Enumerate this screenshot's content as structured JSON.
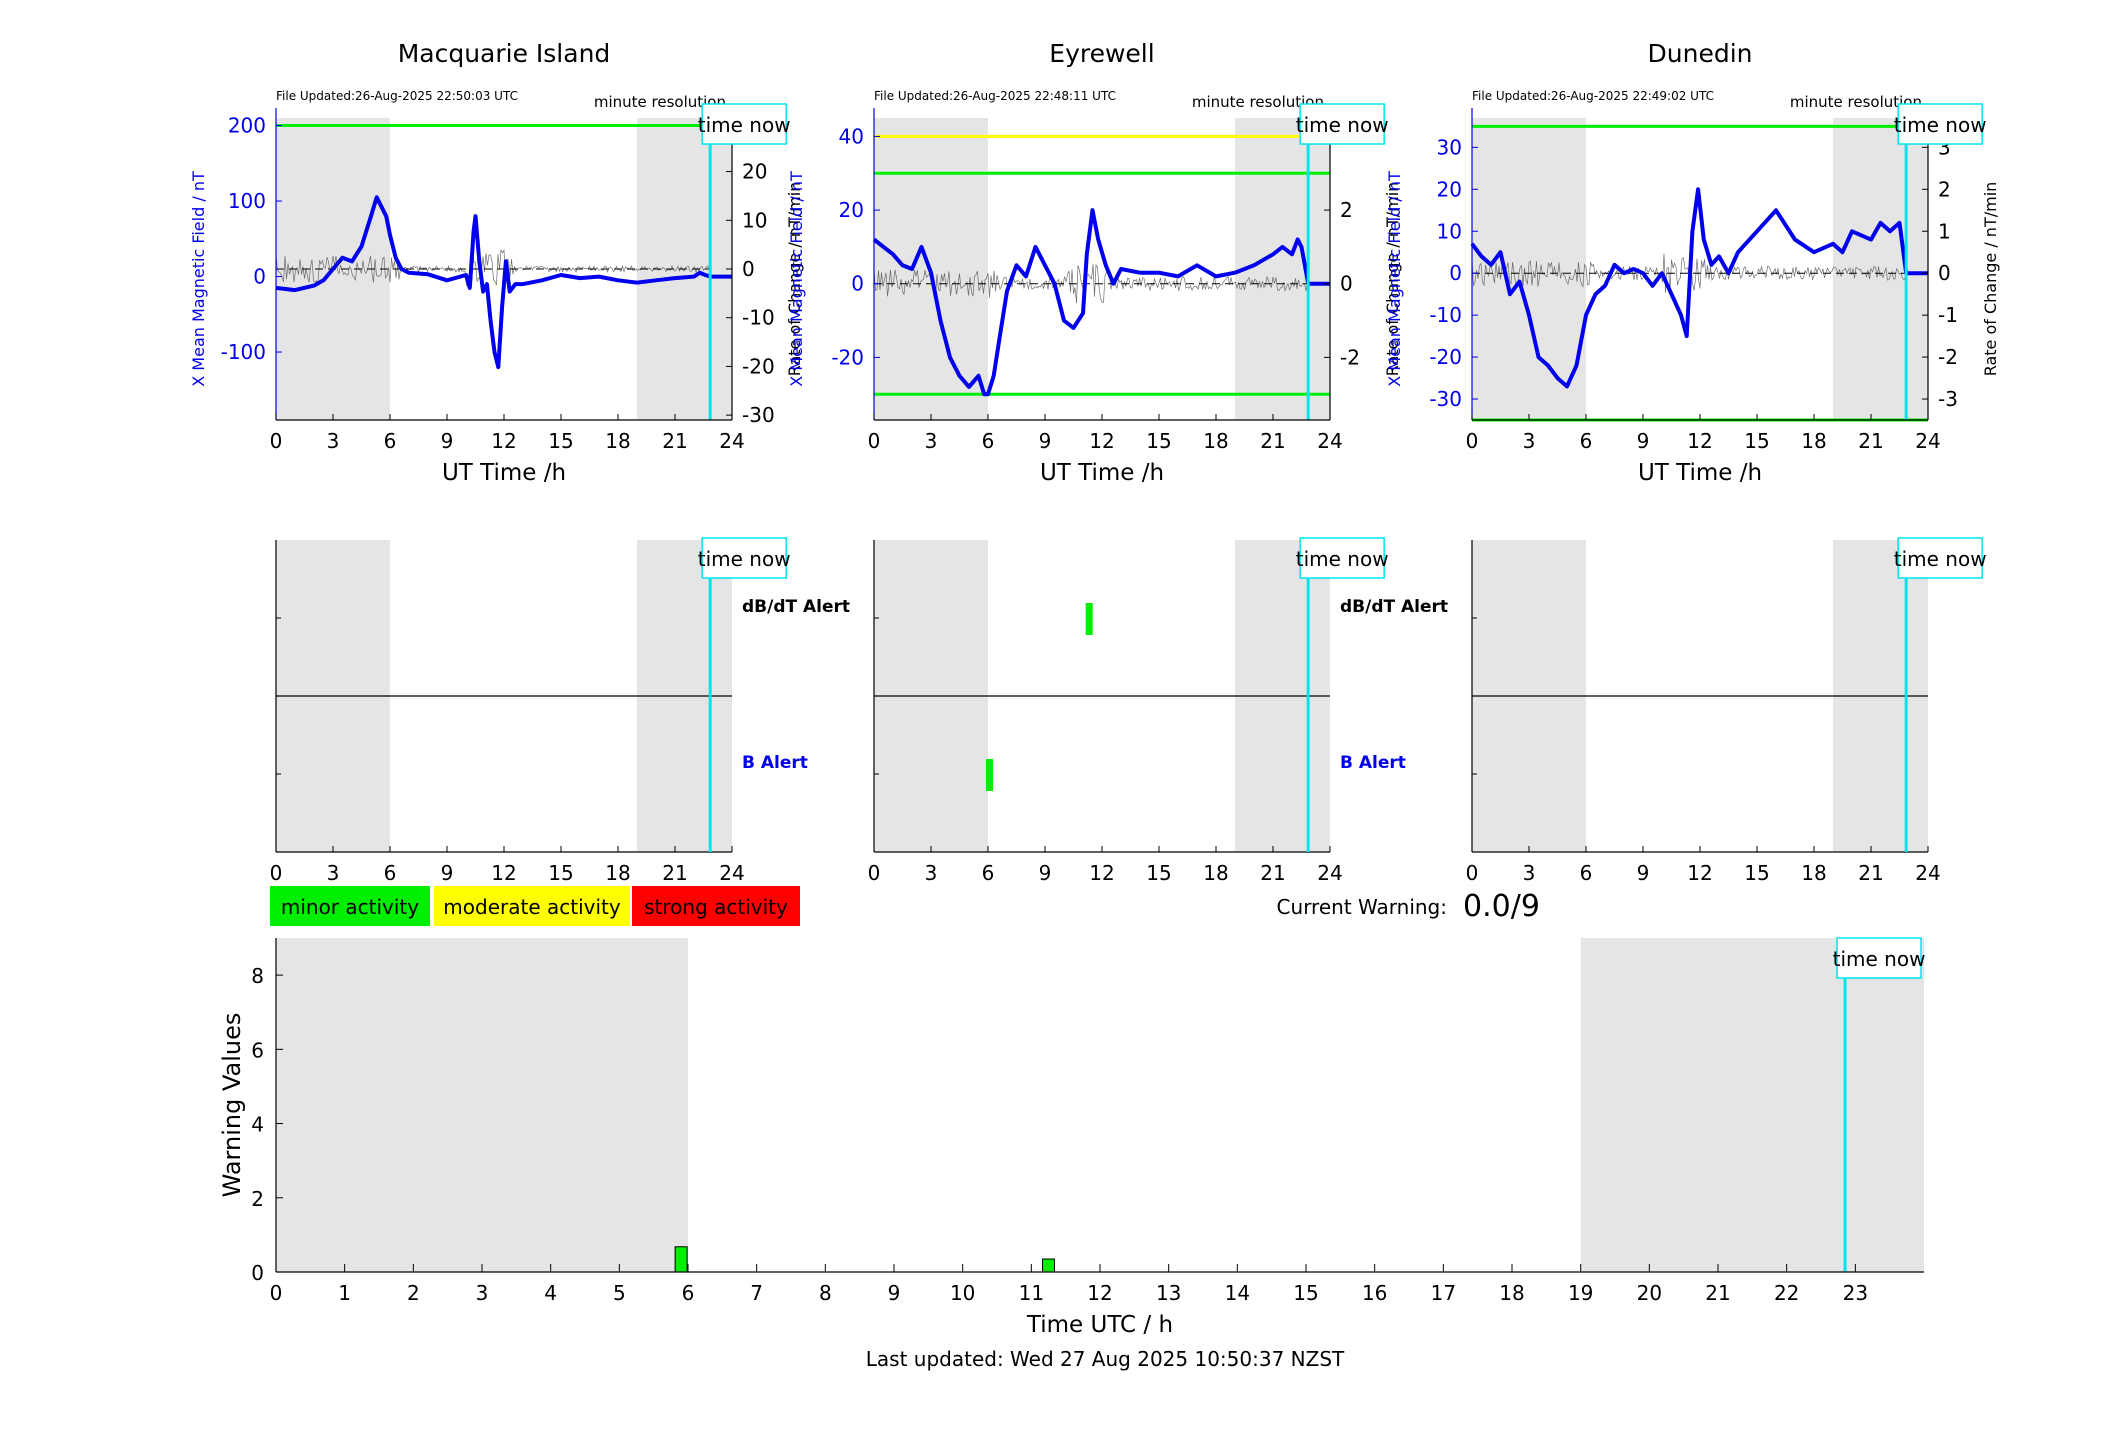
{
  "time_now_label": "time now",
  "last_updated": "Last updated: Wed 27 Aug 2025 10:50:37 NZST",
  "current_warning": {
    "label": "Current Warning:",
    "value": "0.0/9"
  },
  "legend": [
    {
      "label": "minor activity",
      "color": "#00ee00"
    },
    {
      "label": "moderate activity",
      "color": "#ffff00"
    },
    {
      "label": "strong activity",
      "color": "#ff0000"
    }
  ],
  "colors": {
    "field_trace": "#0000ee",
    "rate_trace": "#555555",
    "time_now": "#00e5ee",
    "night_shading": "#e5e5e5",
    "threshold_green": "#00ee00",
    "threshold_yellow": "#ffff00",
    "alert_bar": "#00ee00"
  },
  "alert_labels": {
    "dbdt": "dB/dT Alert",
    "b": "B Alert"
  },
  "stations": [
    {
      "name": "Macquarie Island",
      "file_updated": "File Updated:26-Aug-2025 22:50:03 UTC",
      "resolution": "minute resolution",
      "xlabel": "UT Time /h",
      "ylabel_left": "X Mean Magnetic Field / nT",
      "ylabel_right": "Rate of Change / nT/min"
    },
    {
      "name": "Eyrewell",
      "file_updated": "File Updated:26-Aug-2025 22:48:11 UTC",
      "resolution": "minute resolution",
      "xlabel": "UT Time /h",
      "ylabel_left": "X Mean Magnetic Field / nT",
      "ylabel_right": "Rate of Change / nT/min"
    },
    {
      "name": "Dunedin",
      "file_updated": "File Updated:26-Aug-2025 22:49:02 UTC",
      "resolution": "minute resolution",
      "xlabel": "UT Time /h",
      "ylabel_left": "X Mean Magnetic Field / nT",
      "ylabel_right": "Rate of Change / nT/min"
    }
  ],
  "chart_data": [
    {
      "type": "line",
      "station": "Macquarie Island",
      "xlim": [
        0,
        24
      ],
      "x_ticks": [
        0,
        3,
        6,
        9,
        12,
        15,
        18,
        21,
        24
      ],
      "ylim_left": [
        -190,
        210
      ],
      "y_ticks_left": [
        -100,
        0,
        100,
        200
      ],
      "ylim_right": [
        -31,
        31
      ],
      "y_ticks_right": [
        -30,
        -20,
        -10,
        0,
        10,
        20,
        30
      ],
      "night_shading": [
        [
          0,
          6
        ],
        [
          19,
          24
        ]
      ],
      "time_now": 22.85,
      "thresholds_left": [
        {
          "value": 200,
          "color": "green"
        }
      ],
      "series": [
        {
          "axis": "left",
          "x": [
            0,
            1,
            2,
            2.5,
            3,
            3.5,
            4,
            4.5,
            5,
            5.3,
            5.5,
            5.8,
            6,
            6.3,
            6.6,
            7,
            8,
            9,
            10,
            10.2,
            10.4,
            10.5,
            10.7,
            10.9,
            11.1,
            11.3,
            11.5,
            11.7,
            11.9,
            12.1,
            12.3,
            12.6,
            13,
            14,
            15,
            16,
            17,
            18,
            19,
            20,
            21,
            22,
            22.3,
            22.6,
            22.85,
            24
          ],
          "y": [
            -15,
            -18,
            -12,
            -5,
            10,
            25,
            20,
            40,
            80,
            105,
            95,
            80,
            55,
            25,
            10,
            5,
            3,
            -5,
            2,
            -15,
            60,
            80,
            20,
            -20,
            -10,
            -60,
            -100,
            -120,
            -40,
            20,
            -20,
            -10,
            -10,
            -5,
            2,
            -2,
            0,
            -5,
            -8,
            -5,
            -2,
            0,
            5,
            2,
            0,
            0
          ]
        }
      ]
    },
    {
      "type": "line",
      "station": "Eyrewell",
      "xlim": [
        0,
        24
      ],
      "x_ticks": [
        0,
        3,
        6,
        9,
        12,
        15,
        18,
        21,
        24
      ],
      "ylim_left": [
        -37,
        45
      ],
      "y_ticks_left": [
        -20,
        0,
        20,
        40
      ],
      "ylim_right": [
        -3.7,
        4.5
      ],
      "y_ticks_right": [
        -2,
        0,
        2,
        4
      ],
      "night_shading": [
        [
          0,
          6
        ],
        [
          19,
          24
        ]
      ],
      "time_now": 22.85,
      "thresholds_left": [
        {
          "value": 40,
          "color": "yellow"
        },
        {
          "value": 30,
          "color": "green"
        },
        {
          "value": -30,
          "color": "green"
        }
      ],
      "series": [
        {
          "axis": "left",
          "x": [
            0,
            0.5,
            1,
            1.5,
            2,
            2.5,
            3,
            3.5,
            4,
            4.5,
            5,
            5.5,
            5.8,
            6,
            6.3,
            6.6,
            7,
            7.5,
            8,
            8.5,
            9,
            9.5,
            10,
            10.5,
            11,
            11.2,
            11.5,
            11.8,
            12.2,
            12.6,
            13,
            14,
            15,
            16,
            17,
            18,
            19,
            20,
            21,
            21.5,
            22,
            22.3,
            22.5,
            22.85,
            24
          ],
          "y": [
            12,
            10,
            8,
            5,
            4,
            10,
            3,
            -10,
            -20,
            -25,
            -28,
            -25,
            -30,
            -30,
            -25,
            -15,
            -2,
            5,
            2,
            10,
            5,
            0,
            -10,
            -12,
            -8,
            8,
            20,
            12,
            5,
            0,
            4,
            3,
            3,
            2,
            5,
            2,
            3,
            5,
            8,
            10,
            8,
            12,
            10,
            0,
            0
          ]
        }
      ]
    },
    {
      "type": "line",
      "station": "Dunedin",
      "xlim": [
        0,
        24
      ],
      "x_ticks": [
        0,
        3,
        6,
        9,
        12,
        15,
        18,
        21,
        24
      ],
      "ylim_left": [
        -35,
        37
      ],
      "y_ticks_left": [
        -30,
        -20,
        -10,
        0,
        10,
        20,
        30
      ],
      "ylim_right": [
        -3.5,
        3.7
      ],
      "y_ticks_right": [
        -3,
        -2,
        -1,
        0,
        1,
        2,
        3
      ],
      "night_shading": [
        [
          0,
          6
        ],
        [
          19,
          24
        ]
      ],
      "time_now": 22.85,
      "thresholds_left": [
        {
          "value": 35,
          "color": "green"
        },
        {
          "value": -35,
          "color": "green"
        }
      ],
      "series": [
        {
          "axis": "left",
          "x": [
            0,
            0.5,
            1,
            1.5,
            2,
            2.5,
            3,
            3.5,
            4,
            4.5,
            5,
            5.5,
            6,
            6.5,
            7,
            7.5,
            8,
            8.5,
            9,
            9.5,
            10,
            10.5,
            11,
            11.3,
            11.6,
            11.9,
            12.2,
            12.6,
            13,
            13.5,
            14,
            15,
            16,
            17,
            18,
            19,
            19.5,
            20,
            21,
            21.5,
            22,
            22.5,
            22.85,
            24
          ],
          "y": [
            7,
            4,
            2,
            5,
            -5,
            -2,
            -10,
            -20,
            -22,
            -25,
            -27,
            -22,
            -10,
            -5,
            -3,
            2,
            0,
            1,
            0,
            -3,
            0,
            -5,
            -10,
            -15,
            10,
            20,
            8,
            2,
            4,
            0,
            5,
            10,
            15,
            8,
            5,
            7,
            5,
            10,
            8,
            12,
            10,
            12,
            0,
            0
          ]
        }
      ]
    },
    {
      "type": "bar",
      "title": "alerts",
      "panels": [
        {
          "station": "Macquarie Island",
          "dbdt_alerts": [],
          "b_alerts": []
        },
        {
          "station": "Eyrewell",
          "dbdt_alerts": [
            11.3
          ],
          "b_alerts": [
            6.05
          ]
        },
        {
          "station": "Dunedin",
          "dbdt_alerts": [],
          "b_alerts": []
        }
      ],
      "xlim": [
        0,
        24
      ],
      "x_ticks": [
        0,
        3,
        6,
        9,
        12,
        15,
        18,
        21,
        24
      ]
    },
    {
      "type": "bar",
      "xlabel": "Time UTC / h",
      "ylabel": "Warning Values",
      "xlim": [
        0,
        24
      ],
      "ylim": [
        0,
        9
      ],
      "x_ticks": [
        0,
        1,
        2,
        3,
        4,
        5,
        6,
        7,
        8,
        9,
        10,
        11,
        12,
        13,
        14,
        15,
        16,
        17,
        18,
        19,
        20,
        21,
        22,
        23
      ],
      "y_ticks": [
        0,
        2,
        4,
        6,
        8
      ],
      "night_shading": [
        [
          0,
          6
        ],
        [
          19,
          24
        ]
      ],
      "time_now": 22.85,
      "bars": [
        {
          "x": 5.9,
          "value": 0.68,
          "color": "#00ee00"
        },
        {
          "x": 11.25,
          "value": 0.35,
          "color": "#00ee00"
        }
      ]
    }
  ]
}
